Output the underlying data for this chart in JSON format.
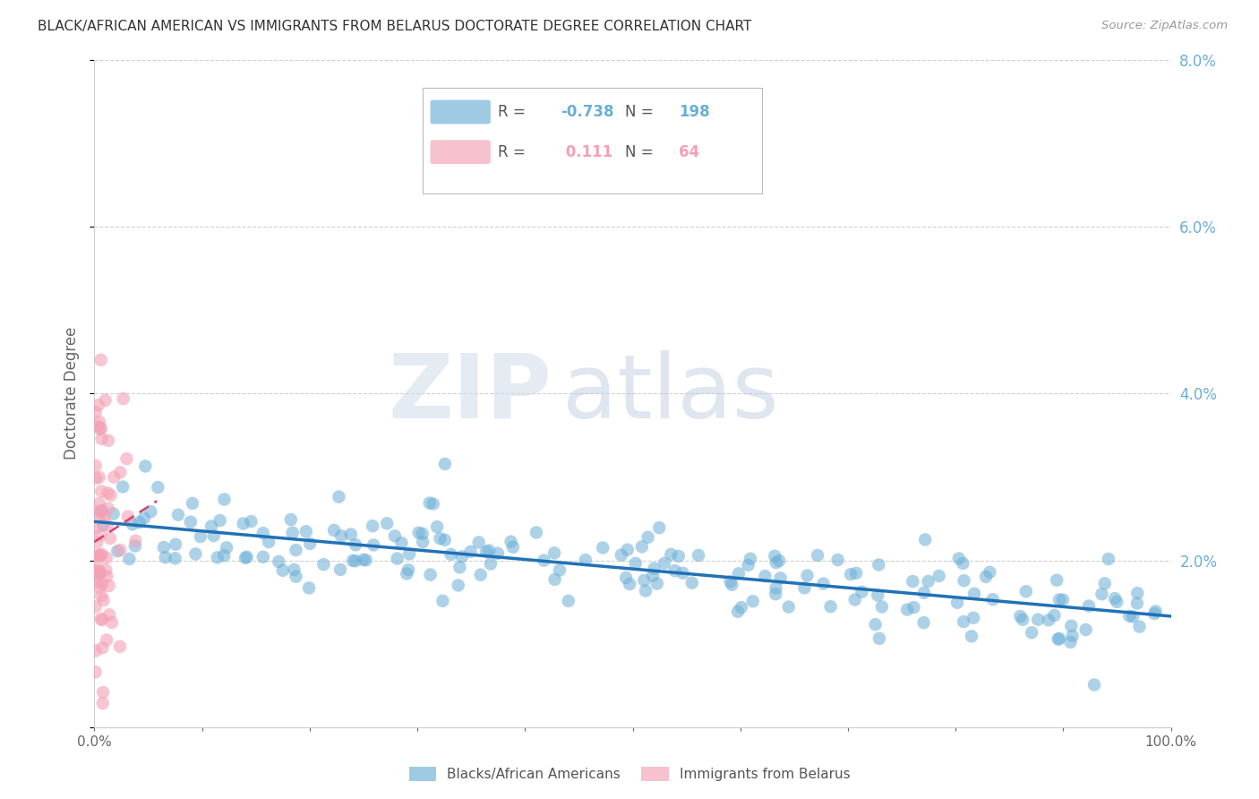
{
  "title": "BLACK/AFRICAN AMERICAN VS IMMIGRANTS FROM BELARUS DOCTORATE DEGREE CORRELATION CHART",
  "source": "Source: ZipAtlas.com",
  "ylabel": "Doctorate Degree",
  "right_yticklabels": [
    "",
    "2.0%",
    "4.0%",
    "6.0%",
    "8.0%"
  ],
  "blue_R": -0.738,
  "blue_N": 198,
  "pink_R": 0.111,
  "pink_N": 64,
  "blue_color": "#6baed6",
  "pink_color": "#f4a0b5",
  "blue_line_color": "#2171b5",
  "pink_line_color": "#d44070",
  "watermark_zip": "ZIP",
  "watermark_atlas": "atlas",
  "legend_label_blue": "Blacks/African Americans",
  "legend_label_pink": "Immigrants from Belarus",
  "xlim": [
    0.0,
    1.0
  ],
  "ylim": [
    0.0,
    0.08
  ],
  "blue_seed": 42,
  "pink_seed": 7
}
